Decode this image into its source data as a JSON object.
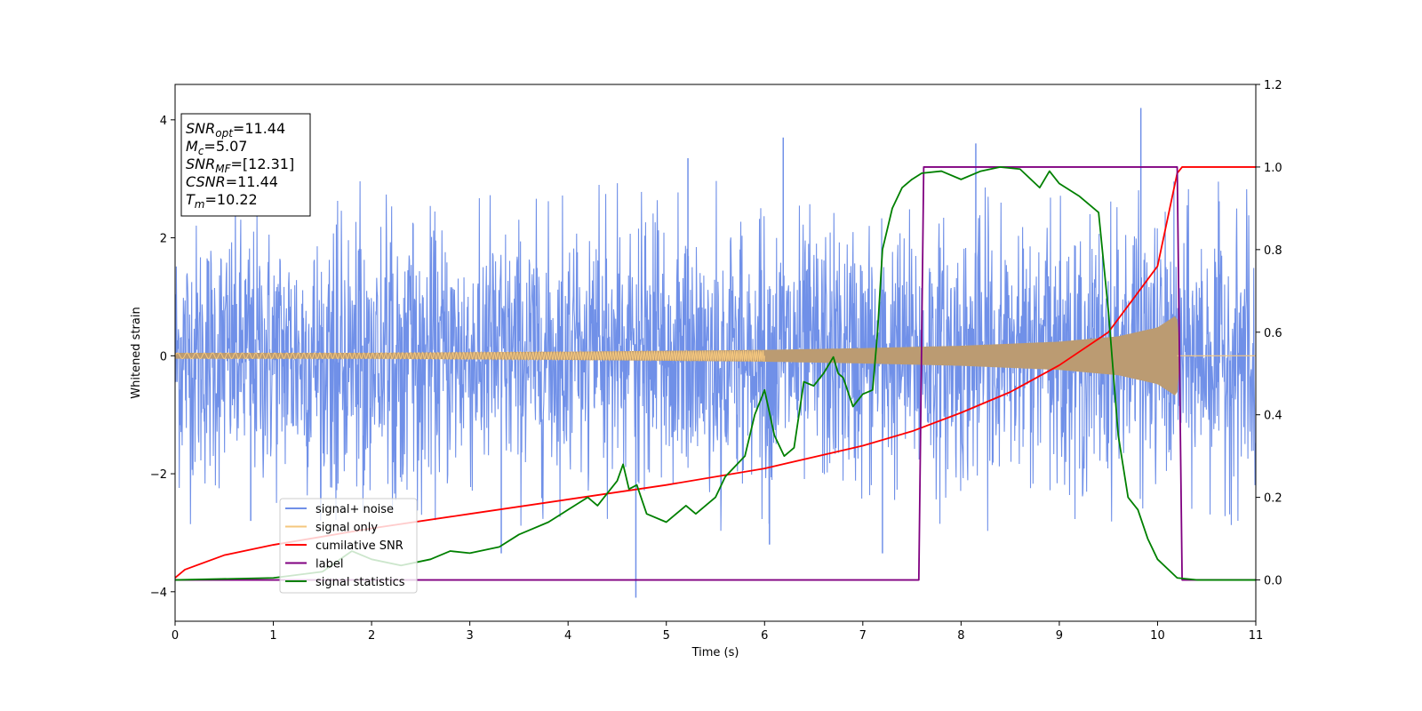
{
  "chart_data": {
    "type": "line",
    "xlabel": "Time (s)",
    "ylabel": "Whitened strain",
    "xlim": [
      0,
      11
    ],
    "ylim": [
      -4.5,
      4.6
    ],
    "y2lim": [
      -0.1,
      1.2
    ],
    "x_ticks": [
      0,
      1,
      2,
      3,
      4,
      5,
      6,
      7,
      8,
      9,
      10,
      11
    ],
    "y_ticks": [
      -4,
      -2,
      0,
      2,
      4
    ],
    "y2_ticks": [
      0.0,
      0.2,
      0.4,
      0.6,
      0.8,
      1.0,
      1.2
    ],
    "x_tick_labels": [
      "0",
      "1",
      "2",
      "3",
      "4",
      "5",
      "6",
      "7",
      "8",
      "9",
      "10",
      "11"
    ],
    "y_tick_labels": [
      "−4",
      "−2",
      "0",
      "2",
      "4"
    ],
    "y2_tick_labels": [
      "0.0",
      "0.2",
      "0.4",
      "0.6",
      "0.8",
      "1.0",
      "1.2"
    ],
    "legend_position": "lower-left",
    "info_box": {
      "position": "top-left",
      "lines": [
        {
          "sym": "SNR",
          "sub": "opt",
          "val": "=11.44"
        },
        {
          "sym": "M",
          "sub": "c",
          "val": "=5.07"
        },
        {
          "sym": "SNR",
          "sub": "MF",
          "val": "=[12.31]"
        },
        {
          "sym": "CSNR",
          "sub": "",
          "val": "=11.44"
        },
        {
          "sym": "T",
          "sub": "m",
          "val": "=10.22"
        }
      ]
    },
    "series": [
      {
        "name": "signal+ noise",
        "axis": "left",
        "color": "#7090e8",
        "kind": "noise_band",
        "envelope_x": [
          0,
          1,
          2,
          3,
          4,
          5,
          6,
          7,
          8,
          9,
          10,
          11
        ],
        "envelope_typical": [
          1.6,
          1.6,
          1.6,
          1.6,
          1.6,
          1.6,
          1.6,
          1.6,
          1.6,
          1.6,
          1.6,
          1.6
        ],
        "spikes": [
          {
            "x": 4.69,
            "y": -4.1
          },
          {
            "x": 9.83,
            "y": 4.2
          },
          {
            "x": 6.19,
            "y": 3.7
          },
          {
            "x": 8.15,
            "y": 3.6
          },
          {
            "x": 5.22,
            "y": 3.35
          },
          {
            "x": 6.05,
            "y": -3.2
          },
          {
            "x": 7.2,
            "y": -3.35
          },
          {
            "x": 3.32,
            "y": -3.35
          },
          {
            "x": 0.77,
            "y": -2.8
          }
        ]
      },
      {
        "name": "signal only",
        "axis": "left",
        "color": "#f5c77e",
        "kind": "chirp",
        "amplitude_x": [
          0,
          2,
          4,
          6,
          7,
          8,
          9,
          9.6,
          10,
          10.2,
          10.22,
          11
        ],
        "amplitude_y": [
          0.05,
          0.05,
          0.07,
          0.1,
          0.13,
          0.17,
          0.24,
          0.33,
          0.48,
          0.7,
          0.0,
          0.0
        ]
      },
      {
        "name": "cumilative SNR",
        "axis": "right",
        "color": "#ff0000",
        "x": [
          0,
          0.1,
          0.5,
          1,
          2,
          3,
          4,
          5,
          6,
          7,
          7.5,
          8,
          8.5,
          9,
          9.5,
          10,
          10.2,
          10.25,
          11
        ],
        "y": [
          0.005,
          0.025,
          0.06,
          0.085,
          0.125,
          0.16,
          0.195,
          0.23,
          0.27,
          0.325,
          0.36,
          0.405,
          0.455,
          0.52,
          0.6,
          0.76,
          0.985,
          1.0,
          1.0
        ]
      },
      {
        "name": "label",
        "axis": "right",
        "color": "#800080",
        "x": [
          0,
          7.57,
          7.62,
          10.2,
          10.25,
          11
        ],
        "y": [
          0,
          0,
          1,
          1,
          0,
          0
        ]
      },
      {
        "name": "signal statistics",
        "axis": "right",
        "color": "#008000",
        "x": [
          0,
          1.0,
          1.5,
          1.8,
          2.0,
          2.3,
          2.6,
          2.8,
          3.0,
          3.3,
          3.5,
          3.6,
          3.8,
          4.0,
          4.2,
          4.3,
          4.4,
          4.5,
          4.56,
          4.62,
          4.7,
          4.8,
          5.0,
          5.2,
          5.3,
          5.5,
          5.6,
          5.8,
          5.9,
          6.0,
          6.1,
          6.2,
          6.3,
          6.4,
          6.5,
          6.6,
          6.7,
          6.75,
          6.8,
          6.9,
          7.0,
          7.1,
          7.15,
          7.2,
          7.3,
          7.4,
          7.5,
          7.6,
          7.8,
          8.0,
          8.2,
          8.4,
          8.6,
          8.8,
          8.9,
          9.0,
          9.2,
          9.4,
          9.5,
          9.6,
          9.7,
          9.8,
          9.9,
          10.0,
          10.2,
          10.4,
          11
        ],
        "y": [
          0,
          0.005,
          0.02,
          0.07,
          0.05,
          0.035,
          0.05,
          0.07,
          0.065,
          0.08,
          0.11,
          0.12,
          0.14,
          0.17,
          0.2,
          0.18,
          0.21,
          0.24,
          0.28,
          0.22,
          0.23,
          0.16,
          0.14,
          0.18,
          0.16,
          0.2,
          0.25,
          0.3,
          0.4,
          0.46,
          0.35,
          0.3,
          0.32,
          0.48,
          0.47,
          0.5,
          0.54,
          0.5,
          0.49,
          0.42,
          0.45,
          0.46,
          0.6,
          0.8,
          0.9,
          0.95,
          0.97,
          0.985,
          0.99,
          0.97,
          0.99,
          1.0,
          0.995,
          0.95,
          0.99,
          0.96,
          0.93,
          0.89,
          0.65,
          0.35,
          0.2,
          0.17,
          0.1,
          0.05,
          0.005,
          0.0,
          0.0
        ]
      }
    ]
  }
}
